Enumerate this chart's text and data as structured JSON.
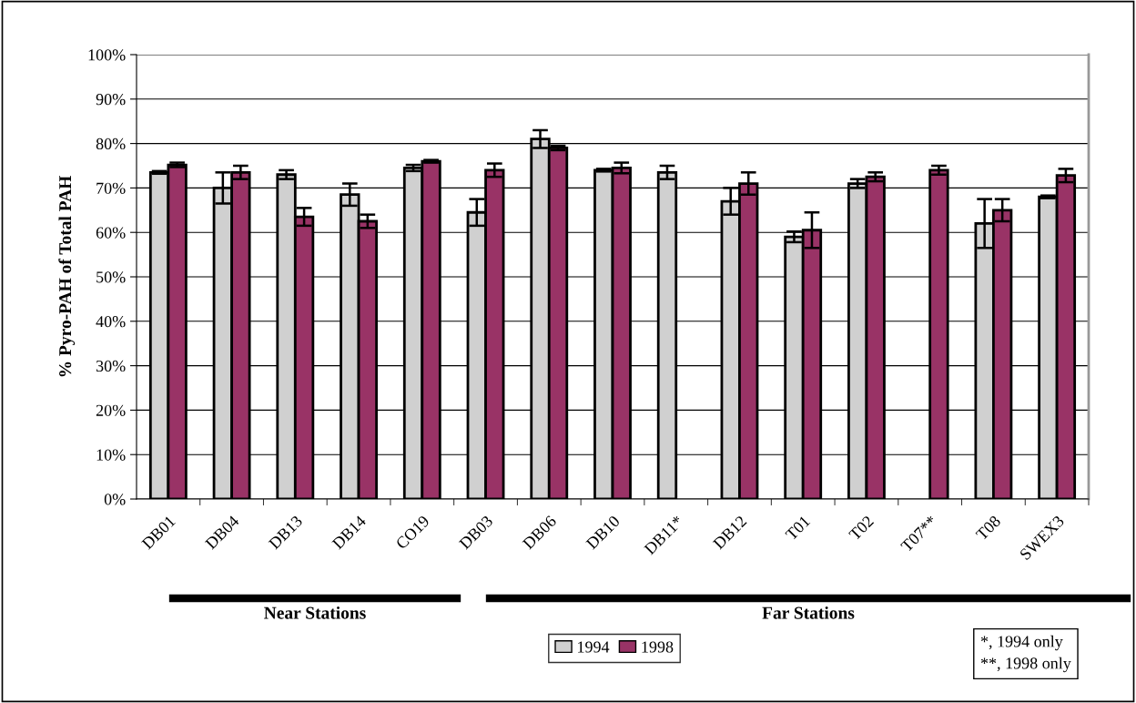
{
  "chart_data": {
    "type": "bar",
    "ylabel": "% Pyro-PAH of Total PAH",
    "categories": [
      "DB01",
      "DB04",
      "DB13",
      "DB14",
      "CO19",
      "DB03",
      "DB06",
      "DB10",
      "DB11*",
      "DB12",
      "T01",
      "T02",
      "T07**",
      "T08",
      "SWEX3"
    ],
    "series": [
      {
        "name": "1994",
        "color": "#d0d0d0",
        "values": [
          73.5,
          70,
          73,
          68.5,
          74.5,
          64.5,
          81,
          74,
          73.5,
          67,
          59,
          71,
          null,
          62,
          68
        ],
        "errors": [
          0.3,
          3.5,
          1,
          2.5,
          0.7,
          3,
          2,
          0.3,
          1.5,
          3,
          1.2,
          1,
          null,
          5.5,
          0.3
        ]
      },
      {
        "name": "1998",
        "color": "#993366",
        "values": [
          75.2,
          73.5,
          63.5,
          62.5,
          76,
          74,
          79,
          74.5,
          null,
          71,
          60.5,
          72.5,
          74,
          65,
          72.8
        ],
        "errors": [
          0.5,
          1.5,
          2,
          1.5,
          0.3,
          1.5,
          0.5,
          1.2,
          null,
          2.5,
          4,
          1,
          1,
          2.5,
          1.5
        ]
      }
    ],
    "ylim": [
      0,
      100
    ],
    "yticks": [
      {
        "value": 0,
        "label": "0%"
      },
      {
        "value": 10,
        "label": "10%"
      },
      {
        "value": 20,
        "label": "20%"
      },
      {
        "value": 30,
        "label": "30%"
      },
      {
        "value": 40,
        "label": "40%"
      },
      {
        "value": 50,
        "label": "50%"
      },
      {
        "value": 60,
        "label": "60%"
      },
      {
        "value": 70,
        "label": "70%"
      },
      {
        "value": 80,
        "label": "80%"
      },
      {
        "value": 90,
        "label": "90%"
      },
      {
        "value": 100,
        "label": "100%"
      }
    ],
    "grid": "y",
    "legend": "bottom",
    "annotations": [
      "Near Stations",
      "Far Stations",
      "*, 1994 only\n**, 1998 only"
    ]
  }
}
